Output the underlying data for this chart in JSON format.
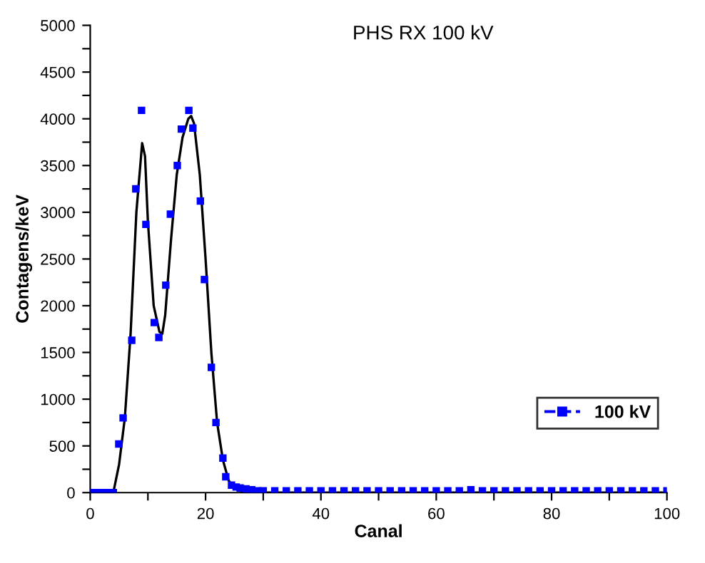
{
  "chart_data": {
    "type": "scatter",
    "title": "PHS RX 100 kV",
    "xlabel": "Canal",
    "ylabel": "Contagens/keV",
    "xlim": [
      0,
      100
    ],
    "ylim": [
      0,
      5000
    ],
    "xticks": [
      0,
      {
        "value": 10,
        "label": null
      },
      20,
      {
        "value": 30,
        "label": null
      },
      40,
      {
        "value": 50,
        "label": null
      },
      60,
      {
        "value": 70,
        "label": null
      },
      80,
      {
        "value": 90,
        "label": null
      },
      100
    ],
    "yticks": [
      0,
      {
        "value": 250,
        "label": null
      },
      500,
      {
        "value": 750,
        "label": null
      },
      1000,
      {
        "value": 1250,
        "label": null
      },
      1500,
      {
        "value": 1750,
        "label": null
      },
      2000,
      {
        "value": 2250,
        "label": null
      },
      2500,
      {
        "value": 2750,
        "label": null
      },
      3000,
      {
        "value": 3250,
        "label": null
      },
      3500,
      {
        "value": 3750,
        "label": null
      },
      4000,
      {
        "value": 4250,
        "label": null
      },
      4500,
      {
        "value": 4750,
        "label": null
      },
      5000
    ],
    "grid": false,
    "legend": "right",
    "marker": "square",
    "series": [
      {
        "type": "line",
        "color": "#000000",
        "marker": "none",
        "x": [
          0,
          4,
          5,
          6,
          7,
          8,
          9,
          9.5,
          10,
          11,
          12,
          12.5,
          13,
          14,
          15,
          16,
          17,
          17.5,
          18,
          19,
          20,
          21,
          22,
          23,
          24,
          25,
          26,
          27,
          100
        ],
        "values": [
          0,
          0,
          300,
          800,
          1700,
          3000,
          3740,
          3600,
          2900,
          2000,
          1720,
          1700,
          1900,
          2700,
          3400,
          3800,
          4000,
          4030,
          3950,
          3400,
          2500,
          1500,
          750,
          350,
          130,
          50,
          20,
          0,
          0
        ]
      },
      {
        "name": "100 kV",
        "color": "#0000ff",
        "x": [
          0,
          1,
          2,
          3,
          4,
          4.95,
          5.7,
          7.2,
          7.9,
          8.9,
          9.65,
          11.1,
          11.9,
          13.1,
          13.9,
          15.1,
          15.8,
          17.1,
          17.8,
          19.1,
          19.8,
          21,
          21.8,
          23,
          23.5,
          24.5,
          25.3,
          26,
          27,
          28,
          29,
          30,
          32,
          34,
          36,
          38,
          40,
          42,
          44,
          46,
          48,
          50,
          52,
          54,
          56,
          58,
          60,
          62,
          64,
          66,
          68,
          70,
          72,
          74,
          76,
          78,
          80,
          82,
          84,
          86,
          88,
          90,
          92,
          94,
          96,
          98,
          100
        ],
        "values": [
          0,
          0,
          0,
          0,
          0,
          520,
          800,
          1630,
          3250,
          4090,
          2870,
          1820,
          1660,
          2220,
          2980,
          3500,
          3890,
          4090,
          3900,
          3120,
          2280,
          1340,
          750,
          370,
          170,
          80,
          60,
          50,
          40,
          30,
          20,
          20,
          20,
          20,
          20,
          20,
          20,
          20,
          20,
          20,
          20,
          20,
          20,
          20,
          20,
          20,
          20,
          20,
          20,
          30,
          20,
          20,
          20,
          20,
          20,
          20,
          20,
          20,
          20,
          20,
          20,
          20,
          20,
          20,
          20,
          20,
          20
        ]
      }
    ]
  }
}
